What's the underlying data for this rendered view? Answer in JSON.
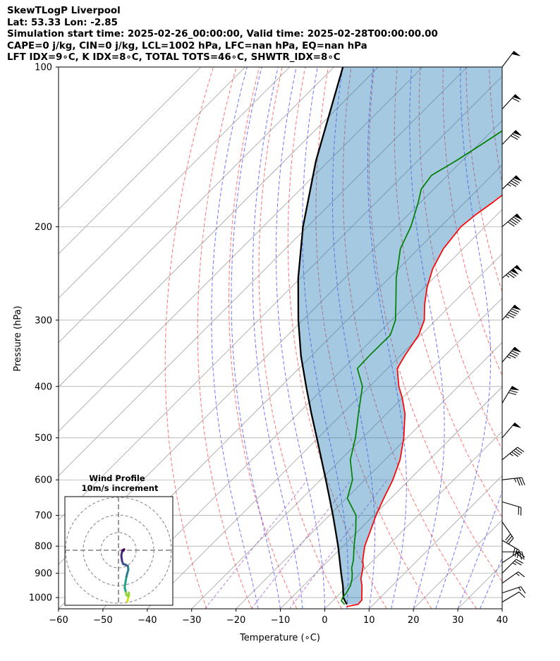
{
  "header": {
    "line1": "SkewTLogP Liverpool",
    "line2": "Lat: 53.33   Lon: -2.85",
    "line3": "Simulation start time: 2025-02-26_00:00:00, Valid time: 2025-02-28T00:00:00.00",
    "line4": "CAPE=0 j/kg, CIN=0 j/kg, LCL=1002 hPa, LFC=nan hPa, EQ=nan hPa",
    "line5": "LFT IDX=9∘C, K IDX=8∘C, TOTAL TOTS=46∘C, SHWTR_IDX=8∘C"
  },
  "chart_data": {
    "type": "line",
    "subtype": "skew-t log-p",
    "xlabel": "Temperature (∘C)",
    "ylabel": "Pressure (hPa)",
    "xlim": [
      -60,
      40
    ],
    "ylim": [
      1050,
      100
    ],
    "y_scale": "log",
    "x_ticks": [
      -60,
      -50,
      -40,
      -30,
      -20,
      -10,
      0,
      10,
      20,
      30,
      40
    ],
    "y_ticks": [
      1000,
      900,
      800,
      700,
      600,
      500,
      400,
      300,
      200,
      100
    ],
    "grid": true,
    "series": [
      {
        "key": "temperature",
        "color": "#ff0000",
        "p": [
          1040,
          1030,
          1010,
          1000,
          980,
          950,
          920,
          900,
          870,
          850,
          800,
          750,
          700,
          650,
          600,
          550,
          500,
          450,
          420,
          400,
          370,
          350,
          320,
          300,
          280,
          260,
          240,
          220,
          200,
          190,
          180,
          170,
          160,
          150,
          140,
          130,
          120,
          110,
          100
        ],
        "t": [
          4.4,
          6.5,
          6.4,
          5.8,
          4.8,
          3.2,
          1.3,
          0.4,
          -1.1,
          -2.4,
          -5.1,
          -7.2,
          -9.5,
          -11.6,
          -13.7,
          -16.6,
          -20.7,
          -25.9,
          -30.1,
          -33.4,
          -37.8,
          -39.0,
          -40.5,
          -42.6,
          -46.1,
          -49.4,
          -52.3,
          -54.4,
          -55.4,
          -54.8,
          -53.7,
          -52.8,
          -52.1,
          -52.2,
          -52.5,
          -52.9,
          -53.4,
          -53.8,
          -54.3
        ]
      },
      {
        "key": "dewpoint",
        "color": "#008000",
        "p": [
          1030,
          1015,
          1000,
          980,
          950,
          920,
          900,
          880,
          850,
          800,
          750,
          700,
          650,
          600,
          550,
          500,
          450,
          400,
          370,
          350,
          320,
          300,
          280,
          250,
          220,
          200,
          180,
          170,
          160,
          150,
          140,
          130,
          120,
          110,
          100
        ],
        "t": [
          3.5,
          2.0,
          1.5,
          1.3,
          0.6,
          -0.7,
          -1.8,
          -3.1,
          -4.5,
          -7.5,
          -10.5,
          -14.0,
          -19.8,
          -22.8,
          -27.8,
          -31.6,
          -36.4,
          -41.6,
          -46.8,
          -47.0,
          -46.9,
          -49.1,
          -52.6,
          -58.4,
          -64.1,
          -66.7,
          -70.5,
          -72.8,
          -73.6,
          -71.3,
          -69.3,
          -67.3,
          -65.0,
          -62.5,
          -60.0
        ]
      },
      {
        "key": "parcel",
        "color": "#000000",
        "p": [
          1030,
          1002,
          950,
          900,
          850,
          800,
          750,
          700,
          650,
          600,
          550,
          500,
          450,
          400,
          350,
          300,
          250,
          200,
          150,
          100
        ],
        "t": [
          4.0,
          1.8,
          -1.1,
          -4.3,
          -7.6,
          -11.1,
          -15.0,
          -19.2,
          -23.8,
          -28.8,
          -34.3,
          -40.3,
          -47.0,
          -54.3,
          -62.4,
          -71.0,
          -80.5,
          -91.0,
          -103.0,
          -118.0
        ]
      }
    ],
    "shaded_region": {
      "between": [
        "parcel",
        "temperature"
      ],
      "color": "#1f77b4",
      "opacity": 0.4
    },
    "background_lines": {
      "isotherms_color": "#808080",
      "dry_adiabats_color": "#ff0000",
      "moist_adiabats_color": "#0000ff",
      "mixing_ratio_color": "#9933cc"
    },
    "wind_barbs": {
      "p": [
        1020,
        980,
        940,
        900,
        860,
        820,
        780,
        720,
        660,
        600,
        550,
        500,
        430,
        360,
        300,
        250,
        200,
        170,
        140,
        120,
        100
      ],
      "u": [
        5,
        6,
        7,
        9,
        9,
        12,
        12,
        9,
        10,
        17,
        17,
        17,
        18,
        28,
        30,
        48,
        35,
        30,
        24,
        20,
        15
      ],
      "v": [
        3,
        2,
        5,
        9,
        6,
        0,
        -7,
        -13,
        -3,
        2,
        14,
        20,
        30,
        33,
        36,
        41,
        30,
        29,
        25,
        22,
        20
      ]
    },
    "hodograph": {
      "title": "Wind Profile",
      "subtitle": "10m/s increment",
      "rings_ms": [
        10,
        20,
        30
      ],
      "points_u": [
        5,
        5.5,
        6,
        6,
        5.8,
        5.5,
        4.5,
        4,
        3.5,
        4,
        4.5,
        5,
        5.6,
        5.3,
        4.5,
        3.5,
        2.6,
        2,
        1.6,
        2,
        3,
        3.2,
        3,
        2.2
      ],
      "points_v": [
        -29,
        -27,
        -26,
        -24.5,
        -24,
        -26,
        -25.5,
        -23,
        -21,
        -18,
        -15,
        -13,
        -11,
        -9,
        -8.5,
        -8,
        -7.8,
        -6,
        -3,
        -1,
        0,
        0.5,
        0.3,
        0
      ],
      "colormap": [
        "#d4e21a",
        "#8ed645",
        "#20a386",
        "#287d8e",
        "#3b528b",
        "#472d7b",
        "#440154"
      ]
    }
  }
}
